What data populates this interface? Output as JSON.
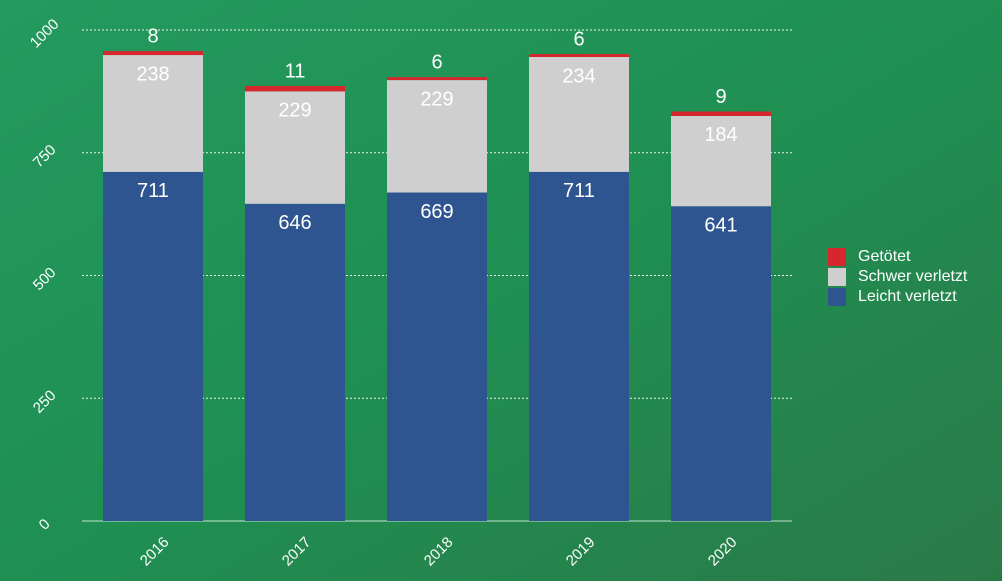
{
  "chart_data": {
    "type": "stacked-bar",
    "categories": [
      "2016",
      "2017",
      "2018",
      "2019",
      "2020"
    ],
    "series": [
      {
        "name": "Leicht verletzt",
        "color": "#2f5590",
        "values": [
          711,
          646,
          669,
          711,
          641
        ]
      },
      {
        "name": "Schwer verletzt",
        "color": "#cfcfcf",
        "values": [
          238,
          229,
          229,
          234,
          184
        ]
      },
      {
        "name": "Getötet",
        "color": "#d7262c",
        "values": [
          8,
          11,
          6,
          6,
          9
        ]
      }
    ],
    "ylim": [
      0,
      1000
    ],
    "yticks": [
      0,
      250,
      500,
      750,
      1000
    ],
    "grid": true,
    "legend": "right"
  }
}
